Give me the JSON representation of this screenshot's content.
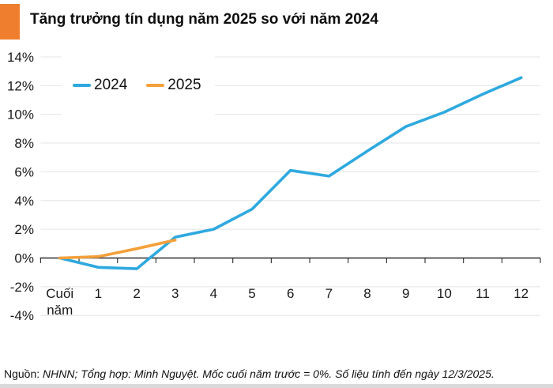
{
  "header": {
    "title": "Tăng trưởng tín dụng năm 2025 so với năm 2024",
    "accent_color": "#EF7F2E"
  },
  "chart_data": {
    "type": "line",
    "title": "Tăng trưởng tín dụng năm 2025 so với năm 2024",
    "categories": [
      "Cuối năm",
      "1",
      "2",
      "3",
      "4",
      "5",
      "6",
      "7",
      "8",
      "9",
      "10",
      "11",
      "12"
    ],
    "series": [
      {
        "name": "2024",
        "color": "#2EA9DF",
        "values": [
          0,
          -0.65,
          -0.75,
          1.45,
          2.0,
          3.4,
          6.1,
          5.7,
          7.45,
          9.15,
          10.15,
          11.4,
          12.55
        ]
      },
      {
        "name": "2025",
        "color": "#F4A03A",
        "values": [
          0,
          0.1,
          0.65,
          1.25,
          null,
          null,
          null,
          null,
          null,
          null,
          null,
          null,
          null
        ]
      }
    ],
    "xlabel": "",
    "ylabel": "",
    "ylim": [
      -4,
      14
    ],
    "ytick_step": 2,
    "ytick_suffix": "%",
    "grid": true,
    "legend_position": "top-left"
  },
  "legend": {
    "items": [
      "2024",
      "2025"
    ]
  },
  "footer": {
    "source_label": "Nguồn:",
    "source_text": "NHNN; Tổng hợp: Minh Nguyệt. Mốc cuối năm trước = 0%. Số liệu tính đến ngày 12/3/2025."
  }
}
